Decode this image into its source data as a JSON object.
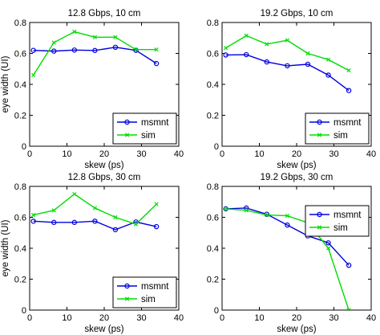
{
  "chart_data": [
    {
      "type": "line",
      "title": "12.8 Gbps, 10 cm",
      "xlabel": "skew (ps)",
      "ylabel": "eye width (UI)",
      "xlim": [
        0,
        40
      ],
      "ylim": [
        0,
        0.8
      ],
      "xticks": [
        "0",
        "10",
        "20",
        "30",
        "40"
      ],
      "yticks": [
        "0",
        "0.2",
        "0.4",
        "0.6",
        "0.8"
      ],
      "legend_position": "bottom-right",
      "series": [
        {
          "name": "msmnt",
          "color": "#0000e0",
          "marker": "circle",
          "x": [
            1,
            6.5,
            12,
            17.5,
            23,
            28.5,
            34
          ],
          "y": [
            0.62,
            0.615,
            0.622,
            0.619,
            0.64,
            0.62,
            0.535
          ]
        },
        {
          "name": "sim",
          "color": "#00dd00",
          "marker": "x",
          "x": [
            1,
            6.5,
            12,
            17.5,
            23,
            28.5,
            34
          ],
          "y": [
            0.46,
            0.67,
            0.74,
            0.705,
            0.705,
            0.625,
            0.625
          ]
        }
      ]
    },
    {
      "type": "line",
      "title": "19.2 Gbps, 10 cm",
      "xlabel": "skew (ps)",
      "ylabel": "",
      "xlim": [
        0,
        40
      ],
      "ylim": [
        0,
        0.8
      ],
      "xticks": [
        "0",
        "10",
        "20",
        "30",
        "40"
      ],
      "yticks": [
        "0",
        "0.2",
        "0.4",
        "0.6",
        "0.8"
      ],
      "legend_position": "bottom-right",
      "series": [
        {
          "name": "msmnt",
          "color": "#0000e0",
          "marker": "circle",
          "x": [
            1,
            6.5,
            12,
            17.5,
            23,
            28.5,
            34
          ],
          "y": [
            0.59,
            0.592,
            0.545,
            0.52,
            0.53,
            0.46,
            0.36
          ]
        },
        {
          "name": "sim",
          "color": "#00dd00",
          "marker": "x",
          "x": [
            1,
            6.5,
            12,
            17.5,
            23,
            28.5,
            34
          ],
          "y": [
            0.635,
            0.715,
            0.66,
            0.685,
            0.6,
            0.56,
            0.49
          ]
        }
      ]
    },
    {
      "type": "line",
      "title": "12.8 Gbps, 30 cm",
      "xlabel": "skew (ps)",
      "ylabel": "eye width (UI)",
      "xlim": [
        0,
        40
      ],
      "ylim": [
        0,
        0.8
      ],
      "xticks": [
        "0",
        "10",
        "20",
        "30",
        "40"
      ],
      "yticks": [
        "0",
        "0.2",
        "0.4",
        "0.6",
        "0.8"
      ],
      "legend_position": "bottom-right",
      "series": [
        {
          "name": "msmnt",
          "color": "#0000e0",
          "marker": "circle",
          "x": [
            1,
            6.5,
            12,
            17.5,
            23,
            28.5,
            34
          ],
          "y": [
            0.575,
            0.567,
            0.567,
            0.575,
            0.52,
            0.57,
            0.54
          ]
        },
        {
          "name": "sim",
          "color": "#00dd00",
          "marker": "x",
          "x": [
            1,
            6.5,
            12,
            17.5,
            23,
            28.5,
            34
          ],
          "y": [
            0.615,
            0.645,
            0.75,
            0.66,
            0.6,
            0.555,
            0.685
          ]
        }
      ]
    },
    {
      "type": "line",
      "title": "19.2 Gbps, 30 cm",
      "xlabel": "skew (ps)",
      "ylabel": "",
      "xlim": [
        0,
        40
      ],
      "ylim": [
        0,
        0.8
      ],
      "xticks": [
        "0",
        "10",
        "20",
        "30",
        "40"
      ],
      "yticks": [
        "0",
        "0.2",
        "0.4",
        "0.6",
        "0.8"
      ],
      "legend_position": "top-right",
      "series": [
        {
          "name": "msmnt",
          "color": "#0000e0",
          "marker": "circle",
          "x": [
            1,
            6.5,
            12,
            17.5,
            23,
            28.5,
            34
          ],
          "y": [
            0.655,
            0.66,
            0.62,
            0.55,
            0.48,
            0.435,
            0.29
          ]
        },
        {
          "name": "sim",
          "color": "#00dd00",
          "marker": "x",
          "x": [
            1,
            6.5,
            12,
            17.5,
            23,
            28.5,
            34
          ],
          "y": [
            0.655,
            0.645,
            0.615,
            0.61,
            0.565,
            0.4,
            0.0
          ]
        }
      ]
    }
  ]
}
